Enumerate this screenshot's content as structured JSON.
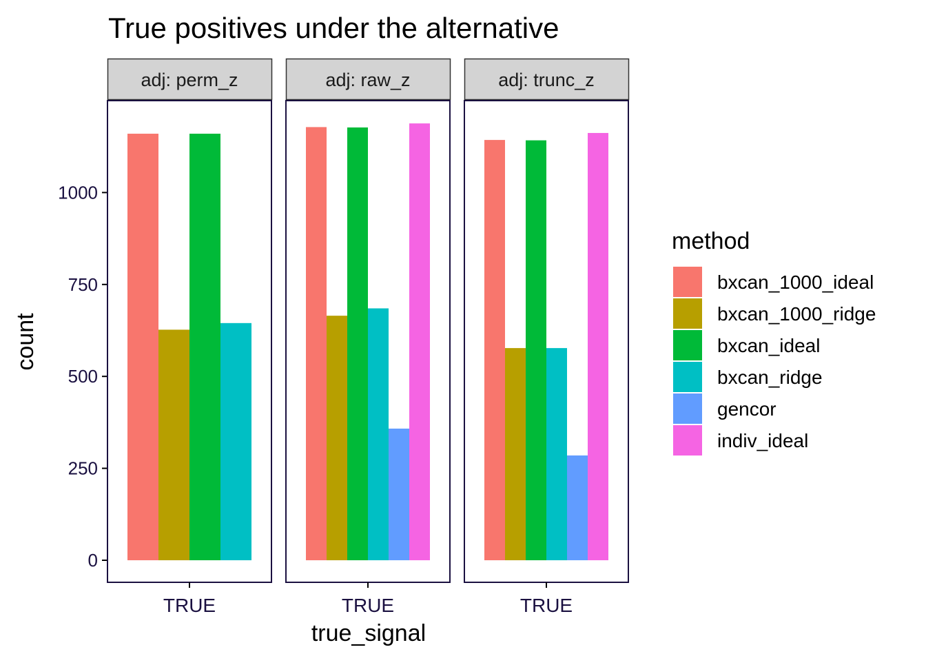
{
  "chart_data": {
    "type": "bar",
    "title": "True positives under the alternative",
    "xlabel": "true_signal",
    "ylabel": "count",
    "ylim": [
      -60,
      1250
    ],
    "yticks": [
      0,
      250,
      500,
      750,
      1000
    ],
    "legend": {
      "title": "method",
      "placement": "right",
      "entries": [
        {
          "name": "bxcan_1000_ideal",
          "color": "#F8766D"
        },
        {
          "name": "bxcan_1000_ridge",
          "color": "#B79F00"
        },
        {
          "name": "bxcan_ideal",
          "color": "#00BA38"
        },
        {
          "name": "bxcan_ridge",
          "color": "#00BFC4"
        },
        {
          "name": "gencor",
          "color": "#619CFF"
        },
        {
          "name": "indiv_ideal",
          "color": "#F564E3"
        }
      ]
    },
    "panels": [
      {
        "strip": "adj: perm_z",
        "category": "TRUE",
        "series": [
          {
            "method": "bxcan_1000_ideal",
            "value": 1160
          },
          {
            "method": "bxcan_1000_ridge",
            "value": 627
          },
          {
            "method": "bxcan_ideal",
            "value": 1160
          },
          {
            "method": "bxcan_ridge",
            "value": 645
          }
        ]
      },
      {
        "strip": "adj: raw_z",
        "category": "TRUE",
        "series": [
          {
            "method": "bxcan_1000_ideal",
            "value": 1178
          },
          {
            "method": "bxcan_1000_ridge",
            "value": 665
          },
          {
            "method": "bxcan_ideal",
            "value": 1177
          },
          {
            "method": "bxcan_ridge",
            "value": 685
          },
          {
            "method": "gencor",
            "value": 358
          },
          {
            "method": "indiv_ideal",
            "value": 1188
          }
        ]
      },
      {
        "strip": "adj: trunc_z",
        "category": "TRUE",
        "series": [
          {
            "method": "bxcan_1000_ideal",
            "value": 1143
          },
          {
            "method": "bxcan_1000_ridge",
            "value": 577
          },
          {
            "method": "bxcan_ideal",
            "value": 1142
          },
          {
            "method": "bxcan_ridge",
            "value": 577
          },
          {
            "method": "gencor",
            "value": 285
          },
          {
            "method": "indiv_ideal",
            "value": 1162
          }
        ]
      }
    ]
  },
  "colors": {
    "axis_text": "#1a1040",
    "strip_fill": "#d3d3d3",
    "panel_border": "#1a1040"
  }
}
